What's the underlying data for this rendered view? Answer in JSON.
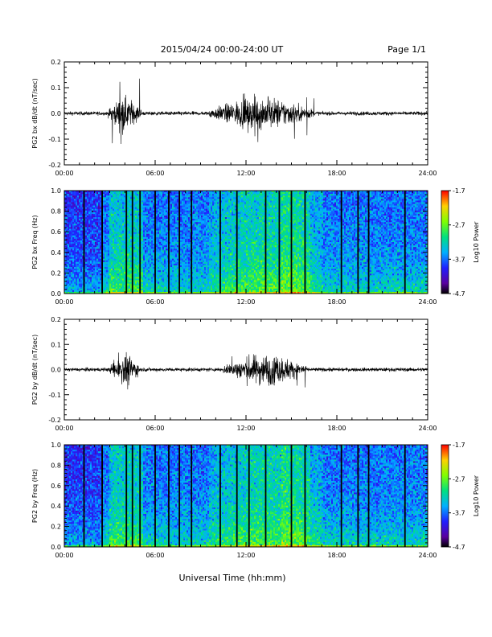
{
  "header": {
    "title": "2015/04/24  00:00-24:00 UT",
    "page": "Page 1/1"
  },
  "footer": {
    "xlabel": "Universal Time (hh:mm)"
  },
  "chart_data": [
    {
      "type": "line",
      "ylabel": "PG2 bx dB/dt (nT/sec)",
      "xlim": [
        0,
        24
      ],
      "ylim": [
        -0.2,
        0.2
      ],
      "yticks": [
        "0.2",
        "0.1",
        "0.0",
        "-0.1",
        "-0.2"
      ],
      "xticks": [
        "00:00",
        "06:00",
        "12:00",
        "18:00",
        "24:00"
      ],
      "activity_bursts": [
        {
          "start_h": 2.9,
          "end_h": 5.1,
          "peak_max": 0.16,
          "peak_min": -0.12
        },
        {
          "start_h": 9.5,
          "end_h": 16.5,
          "peak_max": 0.08,
          "peak_min": -0.12
        }
      ],
      "line_color": "#000000"
    },
    {
      "type": "heatmap",
      "ylabel": "PG2 bx Freq (Hz)",
      "xlim": [
        0,
        24
      ],
      "ylim": [
        0,
        1.0
      ],
      "yticks": [
        "1.0",
        "0.8",
        "0.6",
        "0.4",
        "0.2",
        "0.0"
      ],
      "xticks": [
        "00:00",
        "06:00",
        "12:00",
        "18:00",
        "24:00"
      ],
      "colorbar": {
        "label": "Log10 Power",
        "ticks": [
          "-1.7",
          "-2.7",
          "-3.7",
          "-4.7"
        ],
        "min": -4.7,
        "max": -1.7
      },
      "gap_lines_h": [
        1.3,
        2.5,
        4.1,
        4.5,
        5.0,
        6.0,
        6.9,
        7.6,
        8.4,
        10.3,
        11.4,
        13.3,
        14.2,
        15.0,
        15.9,
        18.3,
        19.4,
        20.1,
        22.5
      ]
    },
    {
      "type": "line",
      "ylabel": "PG2 by dB/dt (nT/sec)",
      "xlim": [
        0,
        24
      ],
      "ylim": [
        -0.2,
        0.2
      ],
      "yticks": [
        "0.2",
        "0.1",
        "0.0",
        "-0.1",
        "-0.2"
      ],
      "xticks": [
        "00:00",
        "06:00",
        "12:00",
        "18:00",
        "24:00"
      ],
      "activity_bursts": [
        {
          "start_h": 3.0,
          "end_h": 5.0,
          "peak_max": 0.08,
          "peak_min": -0.09
        },
        {
          "start_h": 10.5,
          "end_h": 16.0,
          "peak_max": 0.07,
          "peak_min": -0.08
        }
      ],
      "line_color": "#000000"
    },
    {
      "type": "heatmap",
      "ylabel": "PG2 by Freq (Hz)",
      "xlim": [
        0,
        24
      ],
      "ylim": [
        0,
        1.0
      ],
      "yticks": [
        "1.0",
        "0.8",
        "0.6",
        "0.4",
        "0.2",
        "0.0"
      ],
      "xticks": [
        "00:00",
        "06:00",
        "12:00",
        "18:00",
        "24:00"
      ],
      "colorbar": {
        "label": "Log10 Power",
        "ticks": [
          "-1.7",
          "-2.7",
          "-3.7",
          "-4.7"
        ],
        "min": -4.7,
        "max": -1.7
      },
      "gap_lines_h": [
        1.3,
        2.5,
        4.1,
        4.5,
        5.0,
        6.0,
        6.9,
        7.6,
        8.4,
        10.3,
        11.4,
        12.2,
        13.3,
        15.0,
        15.9,
        18.3,
        19.4,
        20.1,
        22.5
      ]
    }
  ]
}
